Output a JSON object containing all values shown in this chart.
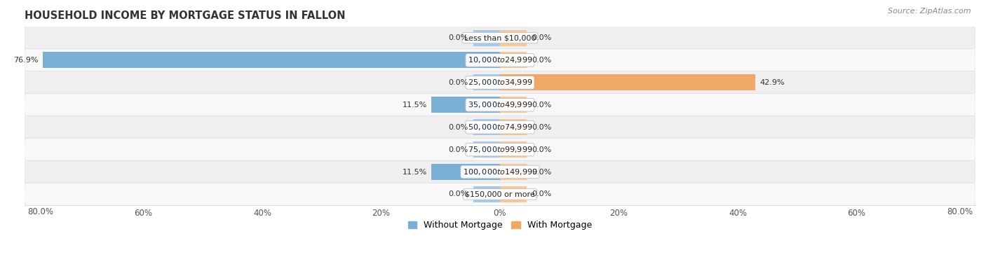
{
  "title": "HOUSEHOLD INCOME BY MORTGAGE STATUS IN FALLON",
  "source": "Source: ZipAtlas.com",
  "categories": [
    "Less than $10,000",
    "$10,000 to $24,999",
    "$25,000 to $34,999",
    "$35,000 to $49,999",
    "$50,000 to $74,999",
    "$75,000 to $99,999",
    "$100,000 to $149,999",
    "$150,000 or more"
  ],
  "without_mortgage": [
    0.0,
    76.9,
    0.0,
    11.5,
    0.0,
    0.0,
    11.5,
    0.0
  ],
  "with_mortgage": [
    0.0,
    0.0,
    42.9,
    0.0,
    0.0,
    0.0,
    0.0,
    0.0
  ],
  "blue_color": "#7bafd4",
  "orange_color": "#f0a868",
  "blue_light": "#aac9e8",
  "orange_light": "#f5c99a",
  "xlim": 80.0,
  "stub_size": 4.5,
  "label_fontsize": 8.0,
  "title_fontsize": 10.5,
  "source_fontsize": 8,
  "legend_fontsize": 9,
  "tick_fontsize": 8.5
}
